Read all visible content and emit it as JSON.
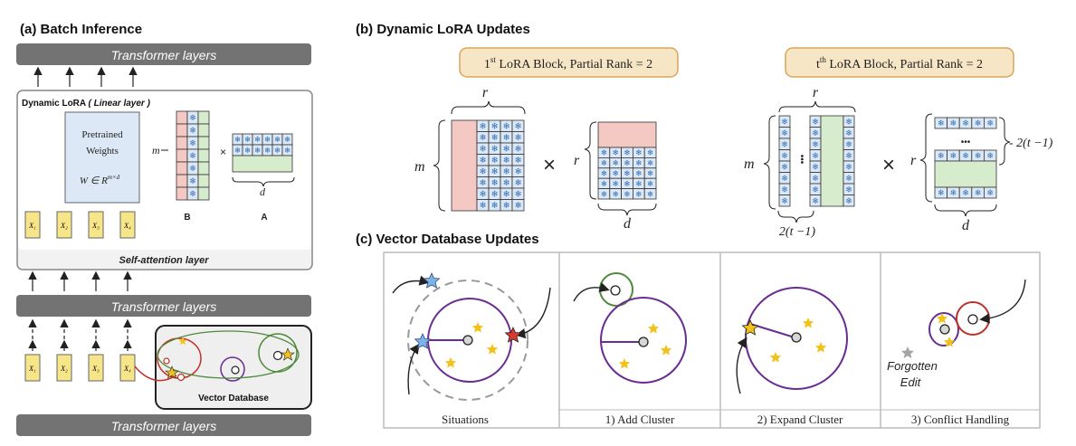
{
  "panel_a": {
    "title": "(a) Batch Inference",
    "top_layer": "Transformer layers",
    "dynamic_lora_label": "Dynamic LoRA",
    "linear_layer_label": "( Linear layer )",
    "pretrained_line1": "Pretrained",
    "pretrained_line2": "Weights",
    "pretrained_formula": "W ∈ R",
    "pretrained_formula_sup": "m×d",
    "m_label": "m",
    "times": "×",
    "d_label": "d",
    "b_label": "B",
    "a_label": "A",
    "inputs": [
      "X₁",
      "X₂",
      "X₃",
      "X₄"
    ],
    "self_attention": "Self-attention layer",
    "mid_layer": "Transformer layers",
    "vector_db": "Vector Database",
    "bottom_layer": "Transformer layers"
  },
  "panel_b": {
    "title": "(b) Dynamic LoRA Updates",
    "block1_pre": "1",
    "block1_sup": "st",
    "block1_post": " LoRA Block, Partial Rank = 2",
    "blockt_pre": "t",
    "blockt_sup": "th",
    "blockt_post": " LoRA Block, Partial Rank = 2",
    "r": "r",
    "m": "m",
    "d": "d",
    "times": "×",
    "two_t_minus_1": "2(t −1)",
    "dash_two_t_minus_1": "- 2(t −1)",
    "dots": "•••"
  },
  "panel_c": {
    "title": "(c) Vector Database Updates",
    "labels": [
      "Situations",
      "1) Add Cluster",
      "2) Expand Cluster",
      "3) Conflict Handling"
    ],
    "forgotten_line1": "Forgotten",
    "forgotten_line2": "Edit"
  },
  "colors": {
    "gray_bar": "#737373",
    "pink": "#f4c9c4",
    "green": "#d7ebcd",
    "blue_cell": "#2f6fb6",
    "light_blue": "#dce8f5",
    "gold_box": "#f7e6c6",
    "gold_border": "#d9a55a",
    "purple": "#6a2c91",
    "red": "#c0302a",
    "green_circle": "#4e8a3a",
    "star_yellow": "#f2c21b",
    "x_box": "#f7e58a"
  }
}
